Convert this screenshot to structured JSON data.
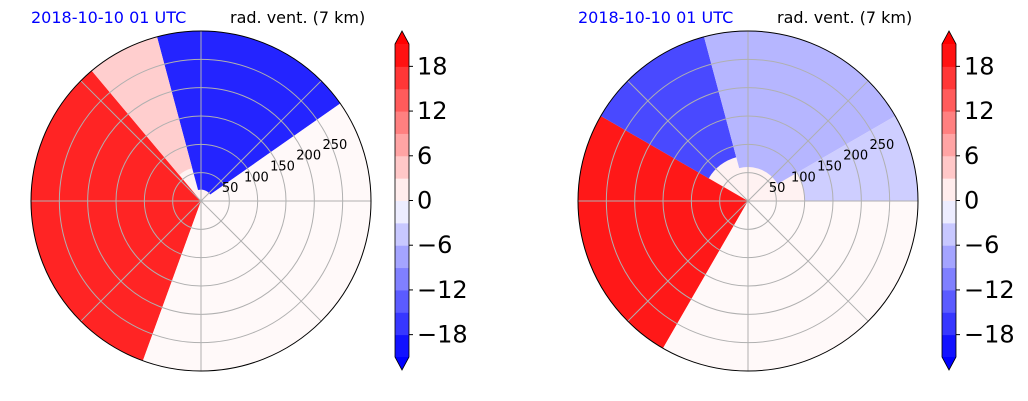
{
  "chart_data": [
    {
      "type": "heatmap",
      "projection": "polar",
      "title_left": "2018-10-10 01 UTC",
      "title_right": "rad. vent. (7 km)",
      "title_left_color": "#0000ff",
      "radial_ticks": [
        "50",
        "100",
        "150",
        "200",
        "250"
      ],
      "radial_max": 300,
      "colorbar": {
        "vmin": -21,
        "vmax": 21,
        "step": 3,
        "ticks": [
          "18",
          "12",
          "6",
          "0",
          "−6",
          "−12",
          "−18"
        ],
        "tick_values": [
          18,
          12,
          6,
          0,
          -6,
          -12,
          -18
        ],
        "colormap": "bwr",
        "extend": "both"
      },
      "regions": [
        {
          "name": "west-positive",
          "azimuth_deg": [
            200,
            320
          ],
          "range": [
            0,
            300
          ],
          "value": 18
        },
        {
          "name": "north-negative",
          "azimuth_deg": [
            345,
            55
          ],
          "range": [
            20,
            300
          ],
          "value": -18
        },
        {
          "name": "northwest-mixed",
          "azimuth_deg": [
            320,
            345
          ],
          "range": [
            60,
            300
          ],
          "value": 4
        },
        {
          "name": "southeast-near-zero",
          "azimuth_deg": [
            55,
            200
          ],
          "range": [
            0,
            300
          ],
          "value": 0.5
        }
      ]
    },
    {
      "type": "heatmap",
      "projection": "polar",
      "title_left": "2018-10-10 01 UTC",
      "title_right": "rad. vent. (7 km)",
      "title_left_color": "#0000ff",
      "radial_ticks": [
        "50",
        "100",
        "150",
        "200",
        "250"
      ],
      "radial_max": 300,
      "colorbar": {
        "vmin": -21,
        "vmax": 21,
        "step": 3,
        "ticks": [
          "18",
          "12",
          "6",
          "0",
          "−6",
          "−12",
          "−18"
        ],
        "tick_values": [
          18,
          12,
          6,
          0,
          -6,
          -12,
          -18
        ],
        "colormap": "bwr",
        "extend": "both"
      },
      "regions": [
        {
          "name": "west-positive",
          "azimuth_deg": [
            210,
            300
          ],
          "range": [
            0,
            300
          ],
          "value": 19
        },
        {
          "name": "northwest-negative",
          "azimuth_deg": [
            300,
            345
          ],
          "range": [
            80,
            300
          ],
          "value": -15
        },
        {
          "name": "north-weak-negative",
          "azimuth_deg": [
            345,
            60
          ],
          "range": [
            60,
            300
          ],
          "value": -6
        },
        {
          "name": "east-weak-negative",
          "azimuth_deg": [
            60,
            90
          ],
          "range": [
            100,
            300
          ],
          "value": -4
        },
        {
          "name": "southeast-near-zero",
          "azimuth_deg": [
            90,
            210
          ],
          "range": [
            0,
            300
          ],
          "value": 0.5
        }
      ]
    }
  ]
}
